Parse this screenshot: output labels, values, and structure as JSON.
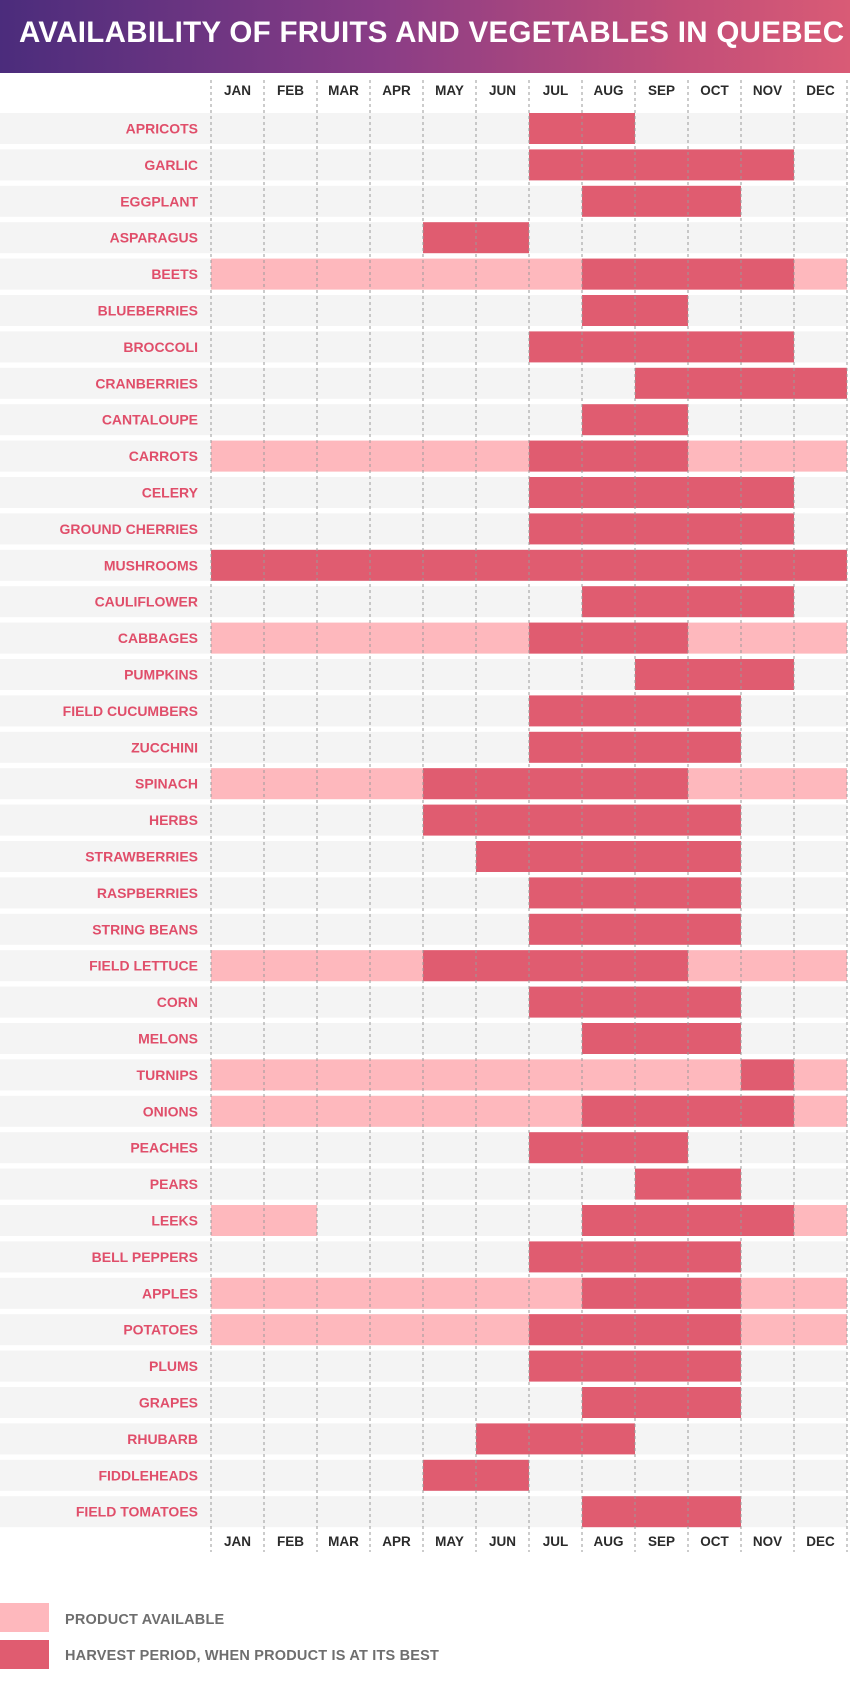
{
  "title": "AVAILABILITY OF FRUITS AND VEGETABLES IN QUEBEC",
  "colors": {
    "available": "#feb8bd",
    "harvest": "#e05c70",
    "label": "#e04e6a",
    "row_shade": "#f4f4f4",
    "month_text": "#2b2b2b"
  },
  "legend": {
    "available_label": "PRODUCT AVAILABLE",
    "harvest_label": "HARVEST PERIOD, WHEN PRODUCT IS AT ITS BEST"
  },
  "chart_data": {
    "type": "gantt",
    "x_categories": [
      "JAN",
      "FEB",
      "MAR",
      "APR",
      "MAY",
      "JUN",
      "JUL",
      "AUG",
      "SEP",
      "OCT",
      "NOV",
      "DEC"
    ],
    "series_names": {
      "available": "PRODUCT AVAILABLE",
      "harvest": "HARVEST PERIOD, WHEN PRODUCT IS AT ITS BEST"
    },
    "rows": [
      {
        "name": "APRICOTS",
        "available": [],
        "harvest": [
          [
            7,
            8
          ]
        ]
      },
      {
        "name": "GARLIC",
        "available": [],
        "harvest": [
          [
            7,
            11
          ]
        ]
      },
      {
        "name": "EGGPLANT",
        "available": [],
        "harvest": [
          [
            8,
            10
          ]
        ]
      },
      {
        "name": "ASPARAGUS",
        "available": [],
        "harvest": [
          [
            5,
            6
          ]
        ]
      },
      {
        "name": "BEETS",
        "available": [
          [
            1,
            12
          ]
        ],
        "harvest": [
          [
            8,
            11
          ]
        ]
      },
      {
        "name": "BLUEBERRIES",
        "available": [],
        "harvest": [
          [
            8,
            9
          ]
        ]
      },
      {
        "name": "BROCCOLI",
        "available": [],
        "harvest": [
          [
            7,
            11
          ]
        ]
      },
      {
        "name": "CRANBERRIES",
        "available": [],
        "harvest": [
          [
            9,
            12
          ]
        ]
      },
      {
        "name": "CANTALOUPE",
        "available": [],
        "harvest": [
          [
            8,
            9
          ]
        ]
      },
      {
        "name": "CARROTS",
        "available": [
          [
            1,
            12
          ]
        ],
        "harvest": [
          [
            7,
            9
          ]
        ]
      },
      {
        "name": "CELERY",
        "available": [],
        "harvest": [
          [
            7,
            11
          ]
        ]
      },
      {
        "name": "GROUND CHERRIES",
        "available": [],
        "harvest": [
          [
            7,
            11
          ]
        ]
      },
      {
        "name": "MUSHROOMS",
        "available": [],
        "harvest": [
          [
            1,
            12
          ]
        ]
      },
      {
        "name": "CAULIFLOWER",
        "available": [],
        "harvest": [
          [
            8,
            11
          ]
        ]
      },
      {
        "name": "CABBAGES",
        "available": [
          [
            1,
            12
          ]
        ],
        "harvest": [
          [
            7,
            9
          ]
        ]
      },
      {
        "name": "PUMPKINS",
        "available": [],
        "harvest": [
          [
            9,
            11
          ]
        ]
      },
      {
        "name": "FIELD CUCUMBERS",
        "available": [],
        "harvest": [
          [
            7,
            10
          ]
        ]
      },
      {
        "name": "ZUCCHINI",
        "available": [],
        "harvest": [
          [
            7,
            10
          ]
        ]
      },
      {
        "name": "SPINACH",
        "available": [
          [
            1,
            12
          ]
        ],
        "harvest": [
          [
            5,
            9
          ]
        ]
      },
      {
        "name": "HERBS",
        "available": [],
        "harvest": [
          [
            5,
            10
          ]
        ]
      },
      {
        "name": "STRAWBERRIES",
        "available": [],
        "harvest": [
          [
            6,
            10
          ]
        ]
      },
      {
        "name": "RASPBERRIES",
        "available": [],
        "harvest": [
          [
            7,
            10
          ]
        ]
      },
      {
        "name": "STRING BEANS",
        "available": [],
        "harvest": [
          [
            7,
            10
          ]
        ]
      },
      {
        "name": "FIELD LETTUCE",
        "available": [
          [
            1,
            12
          ]
        ],
        "harvest": [
          [
            5,
            9
          ]
        ]
      },
      {
        "name": "CORN",
        "available": [],
        "harvest": [
          [
            7,
            10
          ]
        ]
      },
      {
        "name": "MELONS",
        "available": [],
        "harvest": [
          [
            8,
            10
          ]
        ]
      },
      {
        "name": "TURNIPS",
        "available": [
          [
            1,
            12
          ]
        ],
        "harvest": [
          [
            11,
            11
          ]
        ]
      },
      {
        "name": "ONIONS",
        "available": [
          [
            1,
            12
          ]
        ],
        "harvest": [
          [
            8,
            11
          ]
        ]
      },
      {
        "name": "PEACHES",
        "available": [],
        "harvest": [
          [
            7,
            9
          ]
        ]
      },
      {
        "name": "PEARS",
        "available": [],
        "harvest": [
          [
            9,
            10
          ]
        ]
      },
      {
        "name": "LEEKS",
        "available": [
          [
            1,
            2
          ],
          [
            12,
            12
          ]
        ],
        "harvest": [
          [
            8,
            11
          ]
        ]
      },
      {
        "name": "BELL PEPPERS",
        "available": [],
        "harvest": [
          [
            7,
            10
          ]
        ]
      },
      {
        "name": "APPLES",
        "available": [
          [
            1,
            12
          ]
        ],
        "harvest": [
          [
            8,
            10
          ]
        ]
      },
      {
        "name": "POTATOES",
        "available": [
          [
            1,
            12
          ]
        ],
        "harvest": [
          [
            7,
            10
          ]
        ]
      },
      {
        "name": "PLUMS",
        "available": [],
        "harvest": [
          [
            7,
            10
          ]
        ]
      },
      {
        "name": "GRAPES",
        "available": [],
        "harvest": [
          [
            8,
            10
          ]
        ]
      },
      {
        "name": "RHUBARB",
        "available": [],
        "harvest": [
          [
            6,
            8
          ]
        ]
      },
      {
        "name": "FIDDLEHEADS",
        "available": [],
        "harvest": [
          [
            5,
            6
          ]
        ]
      },
      {
        "name": "FIELD TOMATOES",
        "available": [],
        "harvest": [
          [
            8,
            10
          ]
        ]
      }
    ]
  }
}
